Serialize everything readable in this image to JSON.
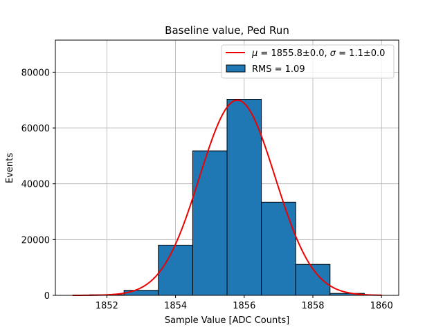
{
  "chart_data": {
    "type": "bar",
    "title": "Baseline value, Ped Run",
    "xlabel": "Sample Value [ADC Counts]",
    "ylabel": "Events",
    "xlim": [
      1850.5,
      1860.5
    ],
    "ylim": [
      0,
      91500
    ],
    "xticks": [
      1852,
      1854,
      1856,
      1858,
      1860
    ],
    "yticks": [
      0,
      20000,
      40000,
      60000,
      80000
    ],
    "grid": true,
    "legend_position": "top-right",
    "bins": [
      {
        "x0": 1850.5,
        "x1": 1851.5,
        "count": 0
      },
      {
        "x0": 1851.5,
        "x1": 1852.5,
        "count": 200
      },
      {
        "x0": 1852.5,
        "x1": 1853.5,
        "count": 1800
      },
      {
        "x0": 1853.5,
        "x1": 1854.5,
        "count": 18000
      },
      {
        "x0": 1854.5,
        "x1": 1855.5,
        "count": 51800
      },
      {
        "x0": 1855.5,
        "x1": 1856.5,
        "count": 70300
      },
      {
        "x0": 1856.5,
        "x1": 1857.5,
        "count": 33400
      },
      {
        "x0": 1857.5,
        "x1": 1858.5,
        "count": 11100
      },
      {
        "x0": 1858.5,
        "x1": 1859.5,
        "count": 700
      },
      {
        "x0": 1859.5,
        "x1": 1860.5,
        "count": 0
      }
    ],
    "fit": {
      "mu": 1855.8,
      "sigma": 1.1,
      "amplitude": 70000,
      "x_range": [
        1851,
        1860
      ],
      "color": "#ee0000"
    },
    "series": [
      {
        "name": "fit",
        "label_parts": [
          "μ",
          " = 1855.8±0.0, ",
          "σ",
          " = 1.1±0.0"
        ]
      },
      {
        "name": "histogram",
        "label": "RMS = 1.09"
      }
    ],
    "bar_color": "#1f77b4"
  }
}
